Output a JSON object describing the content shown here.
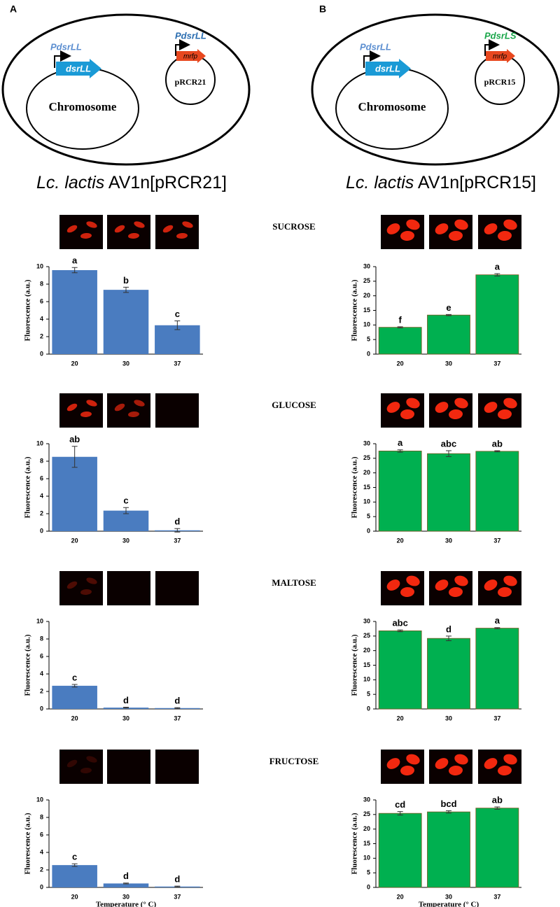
{
  "panels": [
    {
      "label": "A",
      "chromosome_promoter": "PdsrLL",
      "gene": "dsrLL",
      "plasmid_promoter": "PdsrLL",
      "reporter": "mrfp",
      "plasmid": "pRCR21",
      "chromosome": "Chromosome",
      "species": "Lc. lactis",
      "strain": "AV1n[pRCR21]"
    },
    {
      "label": "B",
      "chromosome_promoter": "PdsrLL",
      "gene": "dsrLL",
      "plasmid_promoter": "PdsrLS",
      "reporter": "mrfp",
      "plasmid": "pRCR15",
      "chromosome": "Chromosome",
      "species": "Lc. lactis",
      "strain": "AV1n[pRCR15]"
    }
  ],
  "sugars": [
    "SUCROSE",
    "GLUCOSE",
    "MALTOSE",
    "FRUCTOSE"
  ],
  "chart_data": [
    {
      "type": "bar",
      "ylabel": "Fluorescence (a.u.)",
      "categories": [
        "20",
        "30",
        "37"
      ],
      "values": [
        9.6,
        7.35,
        3.3
      ],
      "errors": [
        0.3,
        0.3,
        0.5
      ],
      "annotations": [
        "a",
        "b",
        "c"
      ],
      "color": "#4a7cc0",
      "ylim": [
        0,
        10
      ],
      "yticks": [
        0,
        2,
        4,
        6,
        8,
        10
      ]
    },
    {
      "type": "bar",
      "ylabel": "Fluorescence (a.u.)",
      "categories": [
        "20",
        "30",
        "37"
      ],
      "values": [
        8.5,
        2.35,
        0.1
      ],
      "errors": [
        1.2,
        0.35,
        0.2
      ],
      "annotations": [
        "ab",
        "c",
        "d"
      ],
      "color": "#4a7cc0",
      "ylim": [
        0,
        10
      ],
      "yticks": [
        0,
        2,
        4,
        6,
        8,
        10
      ]
    },
    {
      "type": "bar",
      "ylabel": "Fluorescence (a.u.)",
      "categories": [
        "20",
        "30",
        "37"
      ],
      "values": [
        2.65,
        0.15,
        0.1
      ],
      "errors": [
        0.15,
        0.05,
        0.05
      ],
      "annotations": [
        "c",
        "d",
        "d"
      ],
      "color": "#4a7cc0",
      "ylim": [
        0,
        10
      ],
      "yticks": [
        0,
        2,
        4,
        6,
        8,
        10
      ]
    },
    {
      "type": "bar",
      "ylabel": "Fluorescence (a.u.)",
      "xlabel": "Temperature (° C)",
      "categories": [
        "20",
        "30",
        "37"
      ],
      "values": [
        2.55,
        0.45,
        0.1
      ],
      "errors": [
        0.15,
        0.05,
        0.05
      ],
      "annotations": [
        "c",
        "d",
        "d"
      ],
      "color": "#4a7cc0",
      "ylim": [
        0,
        10
      ],
      "yticks": [
        0,
        2,
        4,
        6,
        8,
        10
      ]
    },
    {
      "type": "bar",
      "ylabel": "Fluorescence (a.u.)",
      "categories": [
        "20",
        "30",
        "37"
      ],
      "values": [
        9.2,
        13.4,
        27.2
      ],
      "errors": [
        0.2,
        0.2,
        0.4
      ],
      "annotations": [
        "f",
        "e",
        "a"
      ],
      "color": "#00b050",
      "ylim": [
        0,
        30
      ],
      "yticks": [
        0,
        5,
        10,
        15,
        20,
        25,
        30
      ]
    },
    {
      "type": "bar",
      "ylabel": "Fluorescence (a.u.)",
      "categories": [
        "20",
        "30",
        "37"
      ],
      "values": [
        27.5,
        26.6,
        27.4
      ],
      "errors": [
        0.4,
        1.0,
        0.2
      ],
      "annotations": [
        "a",
        "abc",
        "ab"
      ],
      "color": "#00b050",
      "ylim": [
        0,
        30
      ],
      "yticks": [
        0,
        5,
        10,
        15,
        20,
        25,
        30
      ]
    },
    {
      "type": "bar",
      "ylabel": "Fluorescence (a.u.)",
      "categories": [
        "20",
        "30",
        "37"
      ],
      "values": [
        26.8,
        24.2,
        27.7
      ],
      "errors": [
        0.3,
        0.8,
        0.2
      ],
      "annotations": [
        "abc",
        "d",
        "a"
      ],
      "color": "#00b050",
      "ylim": [
        0,
        30
      ],
      "yticks": [
        0,
        5,
        10,
        15,
        20,
        25,
        30
      ]
    },
    {
      "type": "bar",
      "ylabel": "Fluorescence (a.u.)",
      "xlabel": "Temperature (° C)",
      "categories": [
        "20",
        "30",
        "37"
      ],
      "values": [
        25.4,
        25.9,
        27.2
      ],
      "errors": [
        0.6,
        0.4,
        0.4
      ],
      "annotations": [
        "cd",
        "bcd",
        "ab"
      ],
      "color": "#00b050",
      "ylim": [
        0,
        30
      ],
      "yticks": [
        0,
        5,
        10,
        15,
        20,
        25,
        30
      ]
    }
  ]
}
